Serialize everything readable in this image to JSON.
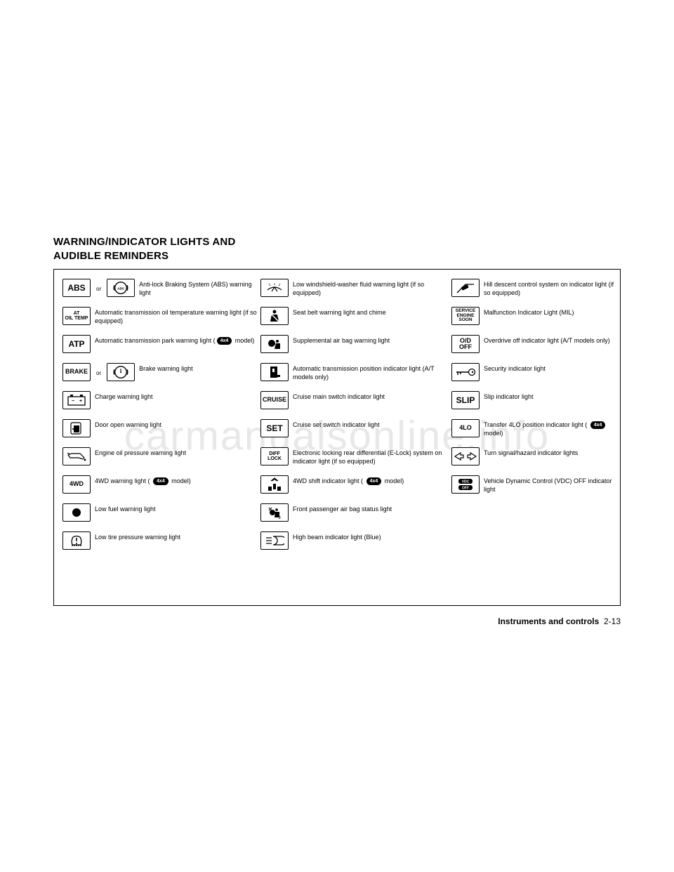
{
  "heading_line1": "WARNING/INDICATOR LIGHTS AND",
  "heading_line2": "AUDIBLE REMINDERS",
  "or_label": "or",
  "badge_4x4": "4x4",
  "footer_section": "Instruments and controls",
  "footer_page": "2-13",
  "watermark": "carmanualsonline.info",
  "col1": [
    {
      "icon_text": "ABS",
      "icon_class": "lg",
      "has_or": true,
      "or_svg": "abs_circle",
      "desc": "Anti-lock Braking System (ABS) warning light"
    },
    {
      "icon_text": "AT\nOIL TEMP",
      "icon_class": "",
      "desc": "Automatic transmission oil temperature warning light (if so equipped)"
    },
    {
      "icon_text": "ATP",
      "icon_class": "lg",
      "desc_pre": "Automatic transmission park warning light (",
      "desc_badge": true,
      "desc_post": " model)"
    },
    {
      "icon_text": "BRAKE",
      "icon_class": "md",
      "has_or": true,
      "or_svg": "brake_circle",
      "desc": "Brake warning light"
    },
    {
      "icon_svg": "battery",
      "desc": "Charge warning light"
    },
    {
      "icon_svg": "door",
      "desc": "Door open warning light"
    },
    {
      "icon_svg": "oilcan",
      "desc": "Engine oil pressure warning light"
    },
    {
      "icon_text": "4WD",
      "icon_class": "md",
      "desc_pre": "4WD warning light ( ",
      "desc_badge": true,
      "desc_post": " model)"
    },
    {
      "icon_svg": "dot",
      "desc": "Low fuel warning light"
    },
    {
      "icon_svg": "tire",
      "desc": "Low tire pressure warning light"
    }
  ],
  "col2": [
    {
      "icon_svg": "washer",
      "desc": "Low windshield-washer fluid warning light (if so equipped)"
    },
    {
      "icon_svg": "seatbelt",
      "desc": "Seat belt warning light and chime"
    },
    {
      "icon_svg": "airbag",
      "desc": "Supplemental air bag warning light"
    },
    {
      "icon_svg": "gear_p",
      "desc": "Automatic transmission position indicator light (A/T models only)"
    },
    {
      "icon_text": "CRUISE",
      "icon_class": "md",
      "desc": "Cruise main switch indicator light"
    },
    {
      "icon_text": "SET",
      "icon_class": "lg",
      "desc": "Cruise set switch indicator light"
    },
    {
      "icon_text": "DIFF\nLOCK",
      "icon_class": "",
      "desc": "Electronic locking rear differential (E-Lock) system on indicator light (if so equipped)"
    },
    {
      "icon_svg": "shift4wd",
      "desc_pre": "4WD shift indicator light ( ",
      "desc_badge": true,
      "desc_post": " model)"
    },
    {
      "icon_svg": "passenger_ab",
      "desc": "Front passenger air bag status light"
    },
    {
      "icon_svg": "highbeam",
      "desc": "High beam indicator light (Blue)"
    }
  ],
  "col3": [
    {
      "icon_svg": "hilldesc",
      "desc": "Hill descent control system on indicator light (if so equipped)"
    },
    {
      "icon_text": "SERVICE\nENGINE\nSOON",
      "icon_class": "stack",
      "desc": "Malfunction Indicator Light (MIL)"
    },
    {
      "icon_text": "O/D\nOFF",
      "icon_class": "md",
      "desc": "Overdrive off indicator light (A/T models only)"
    },
    {
      "icon_svg": "key",
      "desc": "Security indicator light"
    },
    {
      "icon_text": "SLIP",
      "icon_class": "lg",
      "desc": "Slip indicator light"
    },
    {
      "icon_text": "4LO",
      "icon_class": "md",
      "desc_pre": "Transfer 4LO position indicator light ( ",
      "desc_badge": true,
      "desc_post": " model)"
    },
    {
      "icon_svg": "turnsig",
      "desc": "Turn signal/hazard indicator lights"
    },
    {
      "icon_svg": "vdc",
      "desc": "Vehicle Dynamic Control (VDC) OFF indicator light"
    }
  ]
}
